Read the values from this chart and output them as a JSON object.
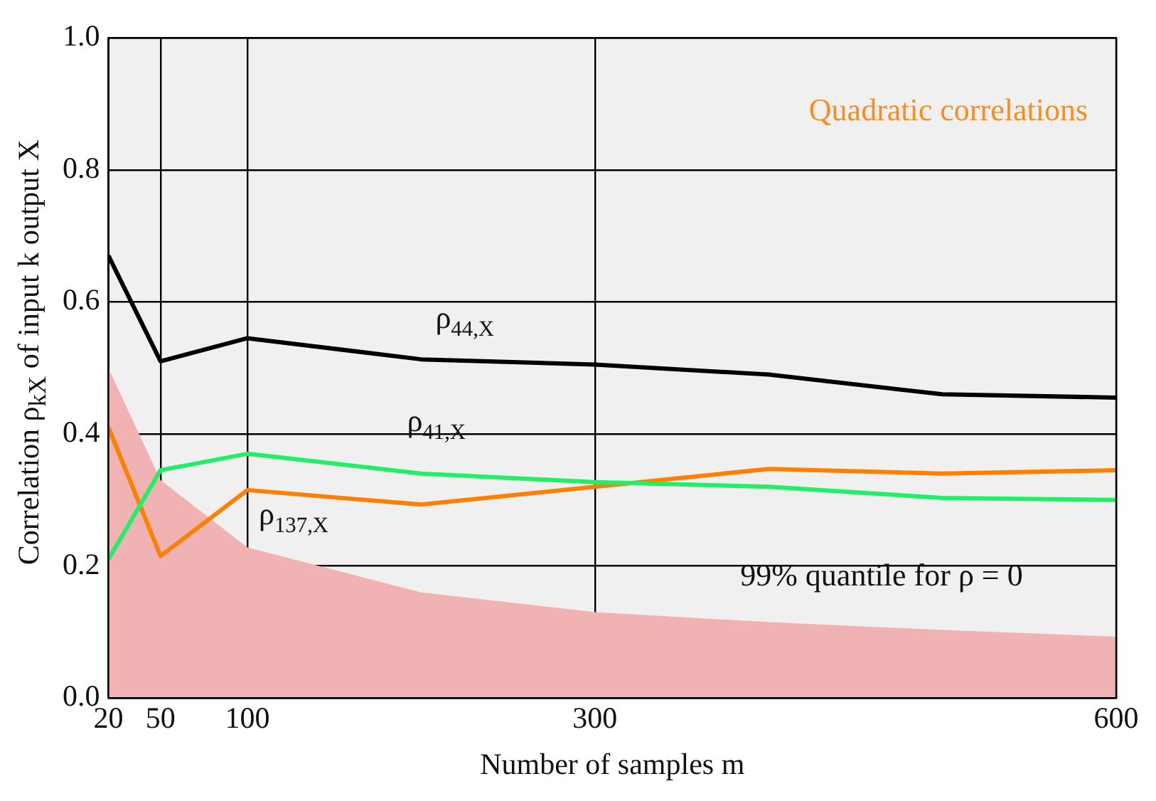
{
  "chart_data": {
    "type": "line",
    "xlabel": "Number of samples m",
    "ylabel": "Correlation ρ$_{kX}$ of input k output X",
    "x": [
      20,
      50,
      100,
      200,
      300,
      400,
      500,
      600
    ],
    "series": [
      {
        "name": "99% quantile for ρ = 0",
        "type": "area",
        "color": "#f0b2b2",
        "values": [
          0.5,
          0.33,
          0.228,
          0.16,
          0.13,
          0.115,
          0.103,
          0.093
        ]
      },
      {
        "name": "ρ$_{44,X}$",
        "color": "#000000",
        "values": [
          0.67,
          0.51,
          0.545,
          0.513,
          0.505,
          0.49,
          0.46,
          0.455
        ]
      },
      {
        "name": "ρ$_{41,X}$",
        "color": "#22ee66",
        "values": [
          0.21,
          0.345,
          0.37,
          0.34,
          0.327,
          0.32,
          0.303,
          0.3
        ]
      },
      {
        "name": "ρ$_{137,X}$",
        "color": "#ff8000",
        "values": [
          0.41,
          0.215,
          0.315,
          0.293,
          0.32,
          0.347,
          0.34,
          0.345
        ]
      }
    ],
    "annotations": [
      "Quadratic correlations"
    ],
    "xlim": [
      20,
      600
    ],
    "xticks": [
      20,
      50,
      100,
      300,
      600
    ],
    "ylim": [
      0,
      1
    ],
    "yticks": [
      {
        "value": 0,
        "label": "0.0"
      },
      0.2,
      0.4,
      0.6,
      0.8,
      {
        "value": 1,
        "label": "1.0"
      }
    ],
    "grid": true,
    "legend": false,
    "marker": "none"
  }
}
